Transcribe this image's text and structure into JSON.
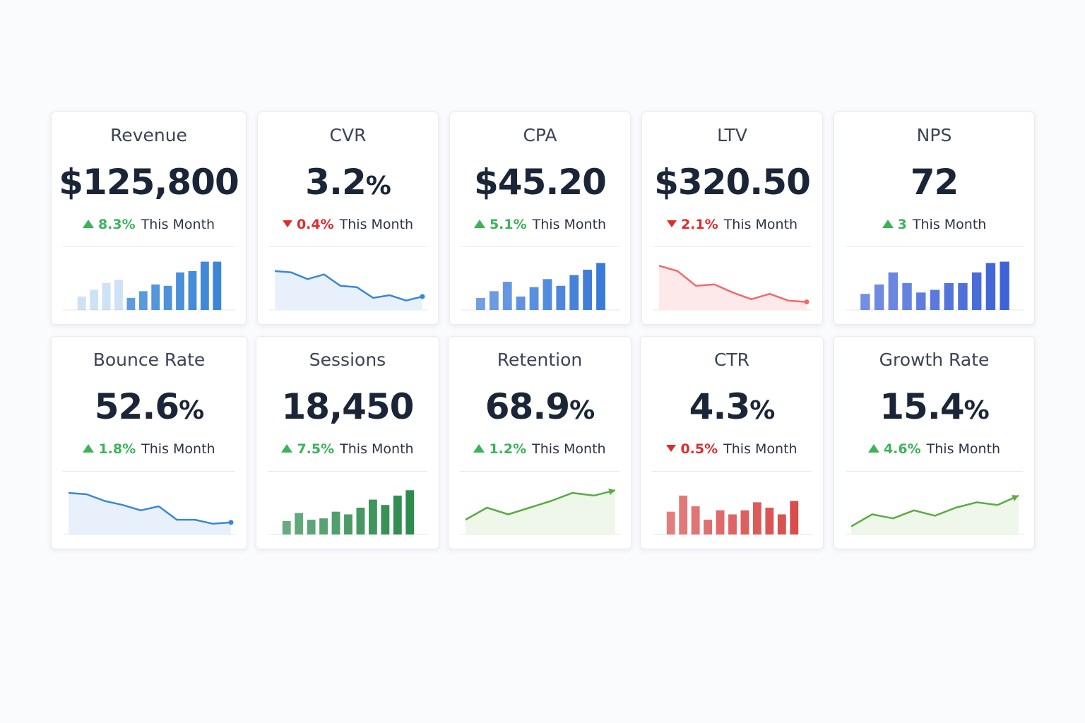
{
  "cards": [
    {
      "title": "Revenue",
      "value": "$125,800",
      "unit": "",
      "change": "8.3%",
      "direction": "up",
      "period": "This Month",
      "chart": {
        "type": "bar",
        "color": "#3b86d6",
        "faded_first": 4,
        "values": [
          20,
          30,
          40,
          45,
          18,
          28,
          38,
          36,
          56,
          58,
          72,
          72
        ]
      }
    },
    {
      "title": "CVR",
      "value": "3.2",
      "unit": "%",
      "change": "0.4%",
      "direction": "down",
      "period": "This Month",
      "chart": {
        "type": "line",
        "color": "#3b86d6",
        "fill": "#e8f1fb",
        "values": [
          58,
          56,
          46,
          53,
          36,
          34,
          18,
          22,
          14,
          20
        ]
      }
    },
    {
      "title": "CPA",
      "value": "$45.20",
      "unit": "",
      "change": "5.1%",
      "direction": "up",
      "period": "This Month",
      "chart": {
        "type": "bar",
        "color": "#3a7ad8",
        "faded_first": 0,
        "values": [
          18,
          28,
          42,
          20,
          34,
          46,
          36,
          52,
          60,
          70
        ]
      }
    },
    {
      "title": "LTV",
      "value": "$320.50",
      "unit": "",
      "change": "2.1%",
      "direction": "down",
      "period": "This Month",
      "chart": {
        "type": "line",
        "color": "#ef6b6b",
        "fill": "#fde9e9",
        "values": [
          66,
          58,
          36,
          38,
          26,
          16,
          24,
          14,
          12
        ]
      }
    },
    {
      "title": "NPS",
      "value": "72",
      "unit": "",
      "change": "3",
      "direction": "up",
      "period": "This Month",
      "chart": {
        "type": "bar",
        "color": "#3f63d6",
        "faded_first": 0,
        "values": [
          24,
          38,
          56,
          40,
          26,
          30,
          40,
          40,
          56,
          70,
          72
        ]
      }
    },
    {
      "title": "Bounce Rate",
      "value": "52.6",
      "unit": "%",
      "change": "1.8%",
      "direction": "up",
      "period": "This Month",
      "chart": {
        "type": "line",
        "color": "#3b86d6",
        "fill": "#e8f1fb",
        "values": [
          62,
          60,
          50,
          44,
          36,
          42,
          22,
          22,
          16,
          18
        ]
      }
    },
    {
      "title": "Sessions",
      "value": "18,450",
      "unit": "",
      "change": "7.5%",
      "direction": "up",
      "period": "This Month",
      "chart": {
        "type": "bar",
        "color": "#2e8b4e",
        "faded_first": 0,
        "values": [
          20,
          32,
          22,
          24,
          34,
          30,
          40,
          52,
          44,
          58,
          66
        ]
      }
    },
    {
      "title": "Retention",
      "value": "68.9",
      "unit": "%",
      "change": "1.2%",
      "direction": "up",
      "period": "This Month",
      "chart": {
        "type": "line",
        "color": "#5aab44",
        "fill": "#eef7ea",
        "arrow": true,
        "values": [
          22,
          40,
          30,
          40,
          50,
          62,
          58,
          66
        ]
      }
    },
    {
      "title": "CTR",
      "value": "4.3",
      "unit": "%",
      "change": "0.5%",
      "direction": "down",
      "period": "This Month",
      "chart": {
        "type": "bar",
        "color": "#d84c4c",
        "faded_first": 0,
        "values": [
          34,
          58,
          42,
          22,
          36,
          30,
          36,
          48,
          40,
          30,
          50
        ]
      }
    },
    {
      "title": "Growth Rate",
      "value": "15.4",
      "unit": "%",
      "change": "4.6%",
      "direction": "up",
      "period": "This Month",
      "chart": {
        "type": "line",
        "color": "#5aab44",
        "fill": "#eef7ea",
        "arrow": true,
        "values": [
          12,
          30,
          24,
          36,
          28,
          40,
          48,
          44,
          58
        ]
      }
    }
  ]
}
